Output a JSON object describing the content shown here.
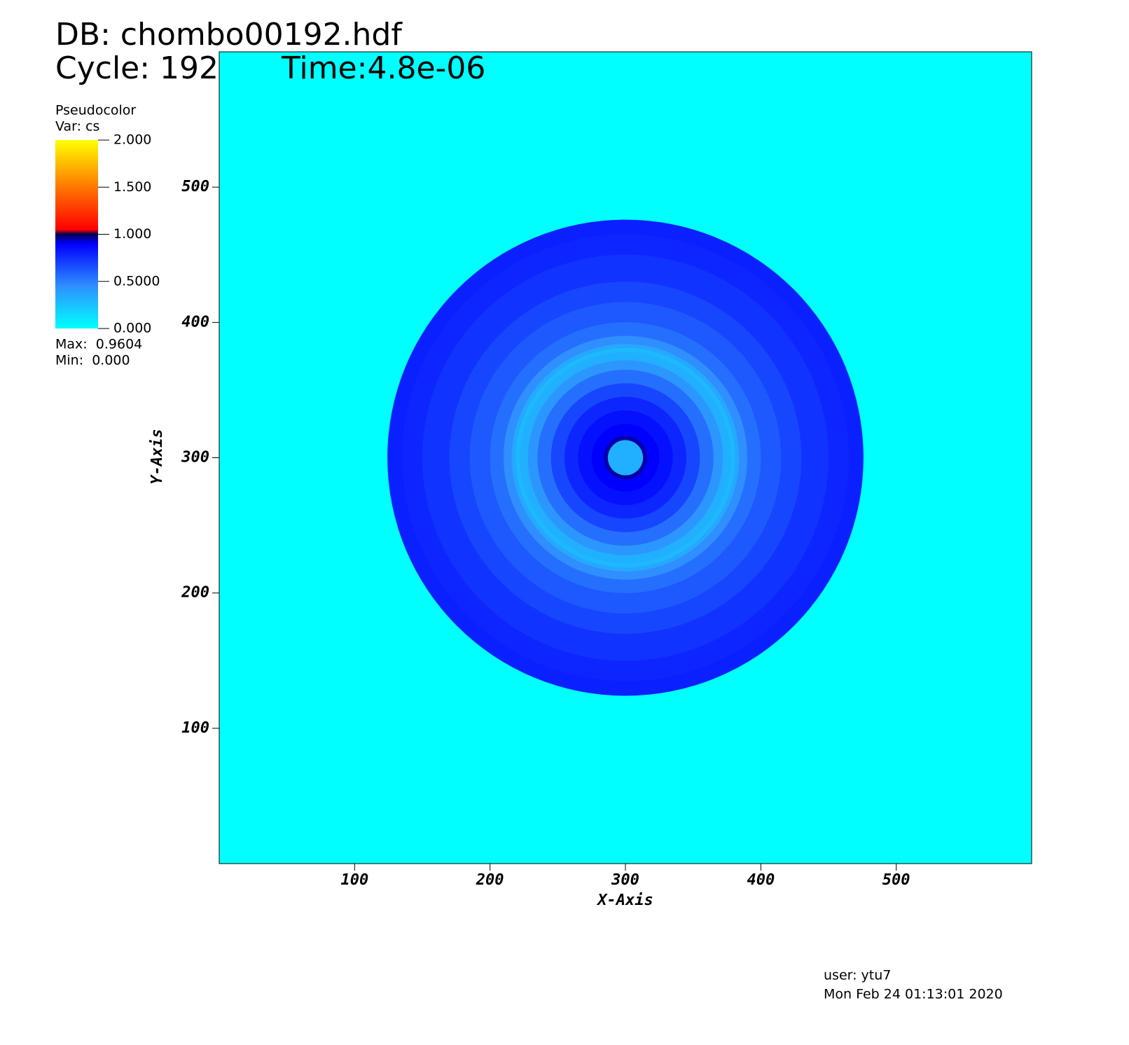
{
  "chart_data": {
    "type": "pseudocolor",
    "title": "DB: chombo00192.hdf",
    "cycle": "Cycle: 192",
    "time": "Time:4.8e-06",
    "legend": {
      "title": "Pseudocolor",
      "variable": "Var: cs",
      "max": "Max:  0.9604",
      "min": "Min:  0.000",
      "clim": [
        0,
        2
      ],
      "ticks": [
        {
          "value": 2,
          "label": "2.000"
        },
        {
          "value": 1.5,
          "label": "1.500"
        },
        {
          "value": 1,
          "label": "1.000"
        },
        {
          "value": 0.5,
          "label": "0.5000"
        },
        {
          "value": 0,
          "label": "0.000"
        }
      ],
      "colormap": [
        {
          "value": 0,
          "color": "#00ffff"
        },
        {
          "value": 0.45,
          "color": "#2f8fff"
        },
        {
          "value": 0.9,
          "color": "#0000ff"
        },
        {
          "value": 1.0,
          "color": "#000050"
        },
        {
          "value": 1.05,
          "color": "#ff0000"
        },
        {
          "value": 1.5,
          "color": "#ff7700"
        },
        {
          "value": 2.0,
          "color": "#ffff00"
        }
      ]
    },
    "x_label": "X-Axis",
    "y_label": "Y-Axis",
    "xlim": [
      0,
      600
    ],
    "ylim": [
      0,
      600
    ],
    "xticks": [
      100,
      200,
      300,
      400,
      500
    ],
    "yticks": [
      100,
      200,
      300,
      400,
      500
    ],
    "background_value": 0,
    "center": [
      300,
      300
    ],
    "radial_profile": {
      "r": [
        13,
        16,
        25,
        35,
        45,
        55,
        65,
        72,
        78,
        81,
        84,
        90,
        100,
        115,
        130,
        150,
        165,
        175.8
      ],
      "values": [
        0.32,
        0.95,
        0.9,
        0.85,
        0.78,
        0.68,
        0.55,
        0.42,
        0.32,
        0.28,
        0.35,
        0.45,
        0.55,
        0.62,
        0.68,
        0.74,
        0.78,
        0.8
      ]
    },
    "user": "user: ytu7",
    "date": "Mon Feb 24 01:13:01 2020"
  }
}
